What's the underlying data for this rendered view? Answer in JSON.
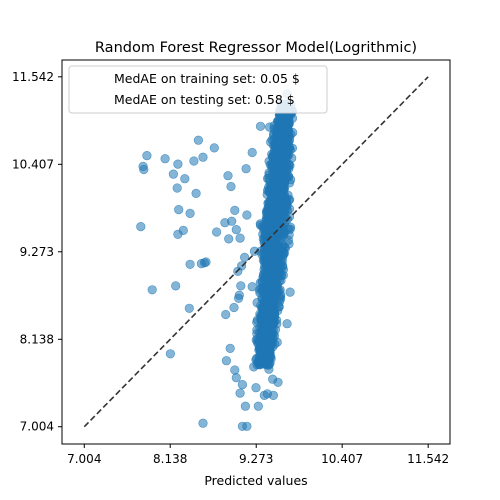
{
  "chart_data": {
    "type": "scatter",
    "title": "Random Forest Regressor Model(Logrithmic)",
    "xlabel": "Predicted values",
    "ylabel": "",
    "xlim": [
      6.71,
      11.83
    ],
    "ylim": [
      6.78,
      11.76
    ],
    "xticks": [
      7.004,
      8.138,
      9.273,
      10.407,
      11.542
    ],
    "yticks": [
      7.004,
      8.138,
      9.273,
      10.407,
      11.542
    ],
    "xtick_labels": [
      "7.004",
      "8.138",
      "9.273",
      "10.407",
      "11.542"
    ],
    "ytick_labels": [
      "7.004",
      "8.138",
      "9.273",
      "10.407",
      "11.542"
    ],
    "grid": false,
    "legend_location": "upper-left",
    "legend": [
      "MedAE on training set: 0.05 $",
      "MedAE on testing set: 0.58 $"
    ],
    "reference_line": {
      "style": "dashed",
      "color": "#333333",
      "from": [
        7.004,
        7.004
      ],
      "to": [
        11.542,
        11.542
      ]
    },
    "point_color": "#1f77b4",
    "point_alpha": 0.55,
    "points": [
      [
        7.83,
        10.52
      ],
      [
        7.79,
        10.34
      ],
      [
        7.78,
        10.38
      ],
      [
        7.75,
        9.6
      ],
      [
        7.9,
        8.78
      ],
      [
        8.07,
        10.48
      ],
      [
        8.18,
        10.28
      ],
      [
        8.23,
        10.1
      ],
      [
        8.24,
        10.41
      ],
      [
        8.33,
        10.22
      ],
      [
        8.25,
        9.82
      ],
      [
        8.24,
        9.5
      ],
      [
        8.31,
        9.55
      ],
      [
        8.4,
        9.77
      ],
      [
        8.45,
        10.45
      ],
      [
        8.48,
        10.03
      ],
      [
        8.51,
        10.72
      ],
      [
        8.57,
        10.5
      ],
      [
        8.21,
        8.83
      ],
      [
        8.39,
        8.54
      ],
      [
        8.4,
        9.11
      ],
      [
        8.55,
        9.12
      ],
      [
        8.59,
        9.13
      ],
      [
        8.61,
        9.14
      ],
      [
        8.14,
        7.95
      ],
      [
        8.57,
        7.05
      ],
      [
        8.72,
        10.62
      ],
      [
        8.75,
        9.53
      ],
      [
        8.9,
        10.26
      ],
      [
        8.94,
        10.12
      ],
      [
        8.86,
        9.65
      ],
      [
        8.91,
        9.44
      ],
      [
        8.95,
        9.67
      ],
      [
        8.99,
        9.81
      ],
      [
        9.01,
        9.56
      ],
      [
        9.06,
        9.45
      ],
      [
        9.03,
        9.02
      ],
      [
        8.98,
        8.55
      ],
      [
        9.05,
        8.71
      ],
      [
        9.07,
        8.83
      ],
      [
        9.04,
        8.67
      ],
      [
        8.87,
        8.46
      ],
      [
        8.93,
        8.02
      ],
      [
        8.88,
        7.86
      ],
      [
        8.99,
        7.74
      ],
      [
        9.01,
        7.64
      ],
      [
        9.09,
        7.55
      ],
      [
        9.06,
        7.44
      ],
      [
        9.13,
        7.27
      ],
      [
        9.09,
        7.01
      ],
      [
        9.15,
        7.01
      ],
      [
        9.08,
        9.09
      ],
      [
        9.12,
        9.2
      ],
      [
        9.15,
        9.75
      ],
      [
        9.14,
        10.35
      ],
      [
        9.22,
        10.56
      ],
      [
        9.33,
        10.9
      ],
      [
        9.45,
        10.89
      ],
      [
        9.6,
        11.0
      ],
      [
        9.55,
        10.8
      ],
      [
        9.66,
        11.19
      ],
      [
        9.68,
        11.32
      ],
      [
        9.7,
        11.12
      ],
      [
        9.63,
        10.12
      ],
      [
        9.41,
        9.8
      ],
      [
        9.36,
        9.5
      ],
      [
        9.25,
        9.28
      ],
      [
        9.22,
        8.82
      ],
      [
        9.28,
        8.36
      ],
      [
        9.24,
        7.78
      ],
      [
        9.27,
        7.51
      ],
      [
        9.3,
        7.27
      ],
      [
        9.38,
        7.41
      ],
      [
        9.42,
        7.43
      ],
      [
        9.5,
        7.41
      ],
      [
        9.56,
        7.58
      ],
      [
        9.44,
        7.75
      ],
      [
        9.44,
        8.58
      ],
      [
        9.72,
        8.75
      ],
      [
        9.68,
        8.34
      ],
      [
        9.49,
        7.62
      ],
      [
        9.36,
        7.85
      ],
      [
        9.55,
        8.1
      ],
      [
        9.6,
        8.9
      ]
    ],
    "dense_band": {
      "x_center_at_low_y": 9.37,
      "x_center_at_high_y": 9.66,
      "y_range": [
        7.8,
        11.2
      ],
      "count": 1400
    }
  }
}
